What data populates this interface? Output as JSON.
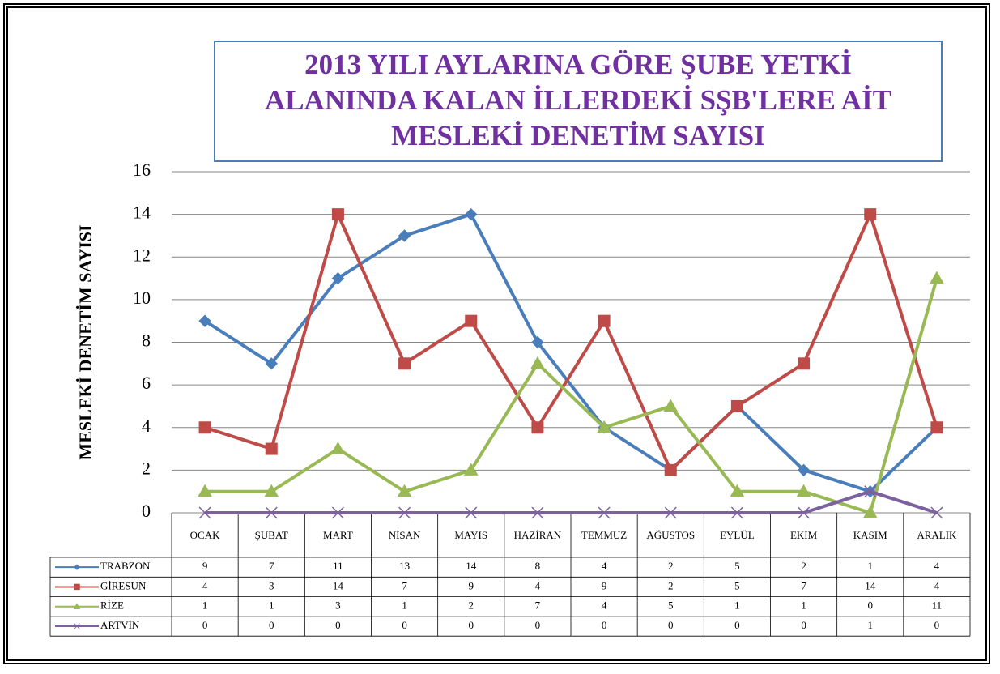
{
  "chart_data": {
    "type": "line",
    "title": "2013 YILI AYLARINA GÖRE ŞUBE YETKİ ALANINDA KALAN İLLERDEKİ SŞB'LERE AİT MESLEKİ DENETİM SAYISI",
    "y_label": "MESLEKİ DENETİM SAYISI",
    "categories": [
      "OCAK",
      "ŞUBAT",
      "MART",
      "NİSAN",
      "MAYIS",
      "HAZİRAN",
      "TEMMUZ",
      "AĞUSTOS",
      "EYLÜL",
      "EKİM",
      "KASIM",
      "ARALIK"
    ],
    "series": [
      {
        "name": "TRABZON",
        "color": "#4a7ebb",
        "marker": "diamond",
        "values": [
          9,
          7,
          11,
          13,
          14,
          8,
          4,
          2,
          5,
          2,
          1,
          4
        ]
      },
      {
        "name": "GİRESUN",
        "color": "#be4b48",
        "marker": "square",
        "values": [
          4,
          3,
          14,
          7,
          9,
          4,
          9,
          2,
          5,
          7,
          14,
          4
        ]
      },
      {
        "name": "RİZE",
        "color": "#98b954",
        "marker": "triangle",
        "values": [
          1,
          1,
          3,
          1,
          2,
          7,
          4,
          5,
          1,
          1,
          0,
          11
        ]
      },
      {
        "name": "ARTVİN",
        "color": "#7d60a0",
        "marker": "x",
        "values": [
          0,
          0,
          0,
          0,
          0,
          0,
          0,
          0,
          0,
          0,
          1,
          0
        ]
      }
    ],
    "ylim": [
      0,
      16
    ],
    "yticks": [
      0,
      2,
      4,
      6,
      8,
      10,
      12,
      14,
      16
    ],
    "grid": true
  }
}
